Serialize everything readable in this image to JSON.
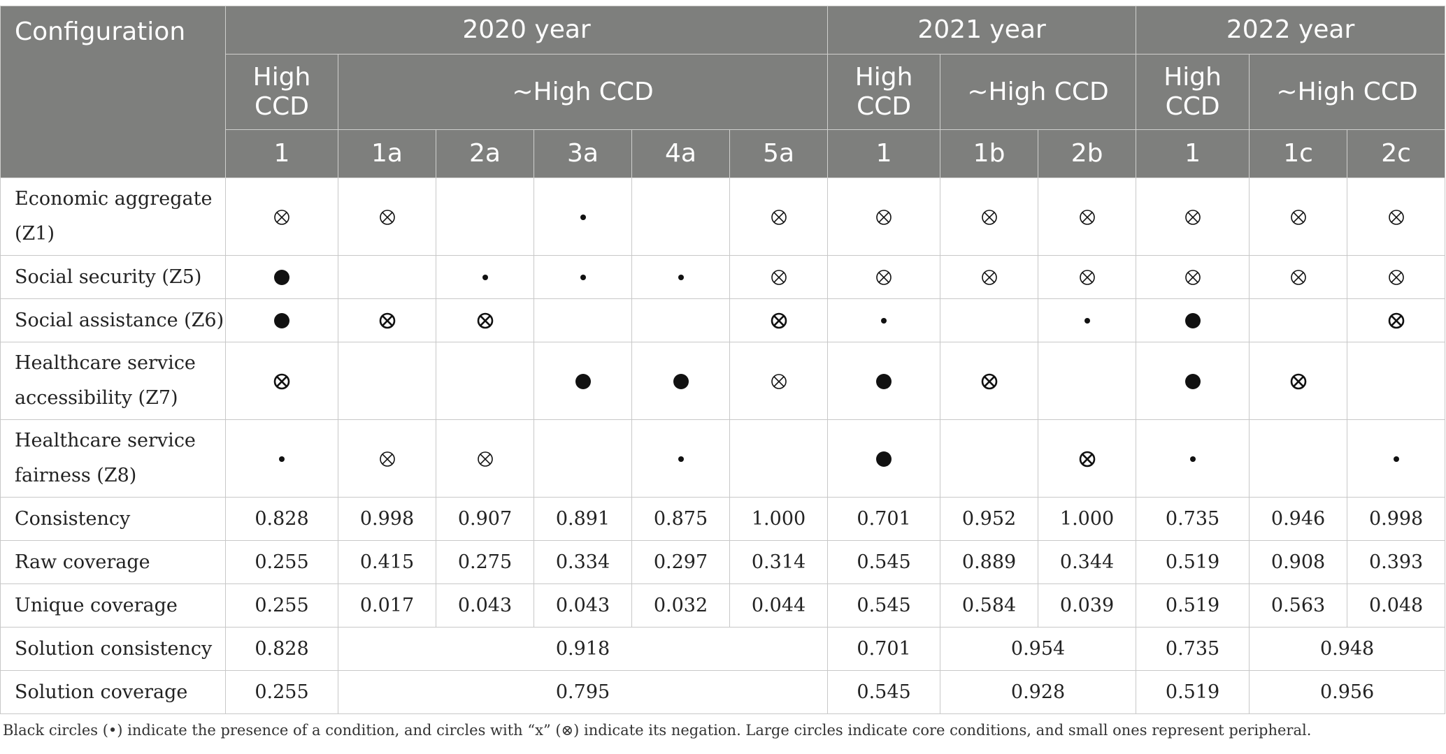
{
  "table": {
    "header": {
      "configuration": "Configuration",
      "years": [
        "2020 year",
        "2021 year",
        "2022 year"
      ],
      "high": "High CCD",
      "not_high": "~High CCD",
      "solutions": [
        "1",
        "1a",
        "2a",
        "3a",
        "4a",
        "5a",
        "1",
        "1b",
        "2b",
        "1",
        "1c",
        "2c"
      ]
    },
    "conditions": [
      {
        "label": "Economic aggregate (Z1)",
        "cells": [
          "neg",
          "neg",
          "",
          "peri",
          "",
          "neg",
          "neg",
          "neg",
          "neg",
          "neg",
          "neg",
          "neg"
        ]
      },
      {
        "label": "Social security (Z5)",
        "cells": [
          "core",
          "",
          "peri",
          "peri",
          "peri",
          "neg",
          "neg",
          "neg",
          "neg",
          "neg",
          "neg",
          "neg"
        ]
      },
      {
        "label": "Social assistance (Z6)",
        "cells": [
          "core",
          "neg-core",
          "neg-core",
          "",
          "",
          "neg-core",
          "peri",
          "",
          "peri",
          "core",
          "",
          "neg-core"
        ]
      },
      {
        "label": "Healthcare service accessibility (Z7)",
        "cells": [
          "neg-core",
          "",
          "",
          "core",
          "core",
          "neg",
          "core",
          "neg-core",
          "",
          "core",
          "neg-core",
          ""
        ]
      },
      {
        "label": "Healthcare service fairness (Z8)",
        "cells": [
          "peri",
          "neg",
          "neg",
          "",
          "peri",
          "",
          "core",
          "",
          "neg-core",
          "peri",
          "",
          "peri"
        ]
      }
    ],
    "metrics": [
      {
        "label": "Consistency",
        "values": [
          "0.828",
          "0.998",
          "0.907",
          "0.891",
          "0.875",
          "1.000",
          "0.701",
          "0.952",
          "1.000",
          "0.735",
          "0.946",
          "0.998"
        ]
      },
      {
        "label": "Raw coverage",
        "values": [
          "0.255",
          "0.415",
          "0.275",
          "0.334",
          "0.297",
          "0.314",
          "0.545",
          "0.889",
          "0.344",
          "0.519",
          "0.908",
          "0.393"
        ]
      },
      {
        "label": "Unique coverage",
        "values": [
          "0.255",
          "0.017",
          "0.043",
          "0.043",
          "0.032",
          "0.044",
          "0.545",
          "0.584",
          "0.039",
          "0.519",
          "0.563",
          "0.048"
        ]
      }
    ],
    "solution_rows": [
      {
        "label": "Solution consistency",
        "values": [
          "0.828",
          "0.918",
          "0.701",
          "0.954",
          "0.735",
          "0.948"
        ]
      },
      {
        "label": "Solution coverage",
        "values": [
          "0.255",
          "0.795",
          "0.545",
          "0.928",
          "0.519",
          "0.956"
        ]
      }
    ]
  },
  "legend_icons": {
    "core": "large-black-circle-icon",
    "peri": "small-black-dot-icon",
    "neg": "circled-x-icon"
  },
  "note": "Black circles (•) indicate the presence of a condition, and circles with “x” (⊗) indicate its negation. Large circles indicate core conditions, and small ones represent peripheral."
}
